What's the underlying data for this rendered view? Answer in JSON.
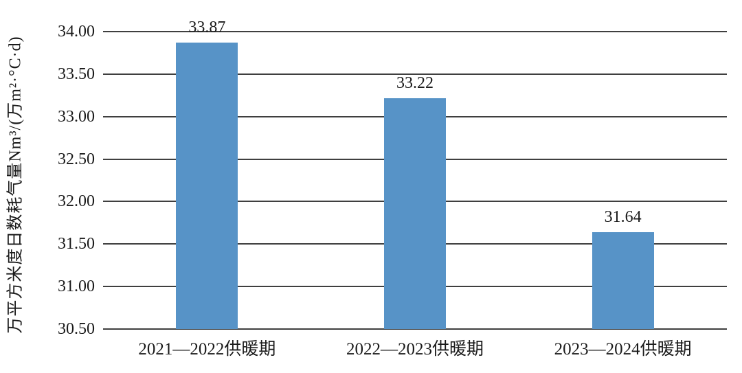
{
  "chart_data": {
    "type": "bar",
    "title": "",
    "categories": [
      "2021—2022供暖期",
      "2022—2023供暖期",
      "2023—2024供暖期"
    ],
    "values": [
      33.87,
      33.22,
      31.64
    ],
    "value_labels": [
      "33.87",
      "33.22",
      "31.64"
    ],
    "ylabel": "万平方米度日数耗气量Nm³/(万m²·°C·d)",
    "xlabel": "",
    "ylim": [
      30.5,
      34.0
    ],
    "ytick_step": 0.5,
    "yticks": [
      "30.50",
      "31.00",
      "31.50",
      "32.00",
      "32.50",
      "33.00",
      "33.50",
      "34.00"
    ],
    "grid": true,
    "gridline_color": "#3f3f3f",
    "bar_color": "#5793C7",
    "text_color": "#1a1a1a",
    "legend": false,
    "legend_position": "none"
  }
}
